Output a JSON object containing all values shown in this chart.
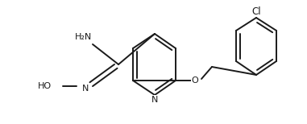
{
  "bg_color": "#ffffff",
  "line_color": "#1a1a1a",
  "line_width": 1.4,
  "font_size": 8.0,
  "figsize": [
    3.81,
    1.54
  ],
  "dpi": 100,
  "xlim": [
    0,
    381
  ],
  "ylim": [
    0,
    154
  ]
}
